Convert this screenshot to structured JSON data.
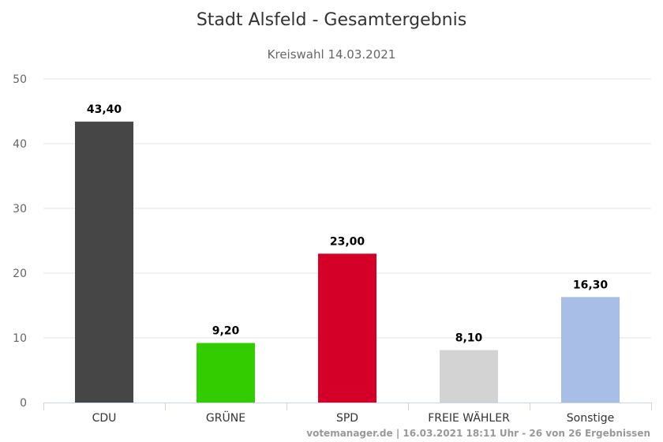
{
  "chart_data": {
    "type": "bar",
    "title": "Stadt Alsfeld - Gesamtergebnis",
    "subtitle": "Kreiswahl 14.03.2021",
    "categories": [
      "CDU",
      "GRÜNE",
      "SPD",
      "FREIE WÄHLER",
      "Sonstige"
    ],
    "values": [
      43.4,
      9.2,
      23.0,
      8.1,
      16.3
    ],
    "value_labels": [
      "43,40",
      "9,20",
      "23,00",
      "8,10",
      "16,30"
    ],
    "colors": [
      "#464646",
      "#33cc00",
      "#d40028",
      "#d3d3d3",
      "#a9bee6"
    ],
    "ylim": [
      0,
      50
    ],
    "yticks": [
      0,
      10,
      20,
      30,
      40,
      50
    ],
    "grid": true,
    "legend": "none"
  },
  "credits": "votemanager.de | 16.03.2021 18:11 Uhr - 26 von 26 Ergebnissen"
}
